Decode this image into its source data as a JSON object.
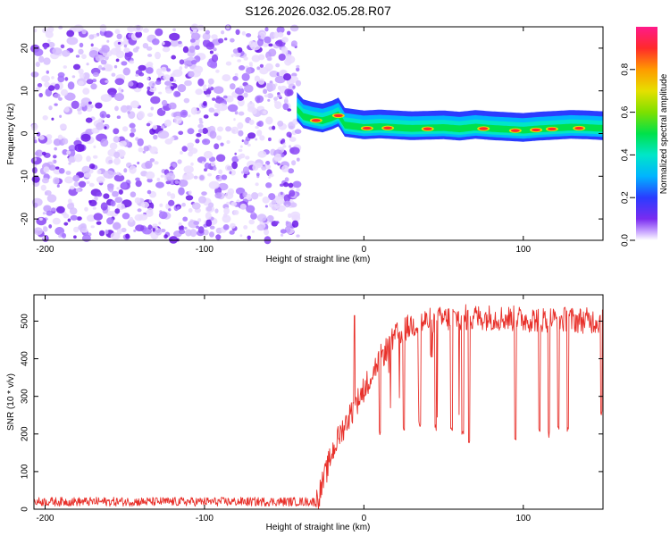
{
  "title": "S126.2026.032.05.28.R07",
  "colors": {
    "line": "#e8302a",
    "ridge_low": "#2a3cff",
    "scatter": "#7a2cf0"
  },
  "chart_data": [
    {
      "id": "spectrogram",
      "type": "heatmap",
      "xlabel": "Height of straight line (km)",
      "ylabel": "Frequency (Hz)",
      "xlim": [
        -207,
        150
      ],
      "ylim": [
        -25,
        25
      ],
      "xticks": [
        -200,
        -100,
        0,
        100
      ],
      "xtick_labels": [
        "-200",
        "-100",
        "0",
        "100"
      ],
      "yticks": [
        -20,
        -10,
        0,
        10,
        20
      ],
      "ytick_labels": [
        "-20",
        "-10",
        "0",
        "10",
        "20"
      ],
      "noise_region_x": [
        -207,
        -41
      ],
      "ridge_x": [
        -42,
        -38,
        -32,
        -26,
        -20,
        -16,
        -12,
        -6,
        0,
        10,
        30,
        50,
        60,
        70,
        80,
        90,
        100,
        110,
        120,
        130,
        140,
        150
      ],
      "ridge_freq": [
        5.5,
        3.8,
        3.2,
        2.8,
        3.5,
        4.2,
        1.8,
        1.5,
        1.2,
        1.4,
        1.0,
        1.2,
        0.9,
        1.3,
        1.0,
        0.8,
        0.6,
        0.9,
        1.1,
        1.3,
        1.2,
        1.0
      ],
      "ridge_peak_x": [
        -30,
        -16,
        2,
        15,
        40,
        75,
        95,
        108,
        118,
        135
      ],
      "colorbar": {
        "label": "Normalized spectral amplitude",
        "range": [
          0,
          1
        ],
        "ticks": [
          0.0,
          0.2,
          0.4,
          0.6,
          0.8
        ],
        "tick_labels": [
          "0.0",
          "0.2",
          "0.4",
          "0.6",
          "0.8"
        ]
      }
    },
    {
      "id": "snr",
      "type": "line",
      "xlabel": "Height of straight line (km)",
      "ylabel": "SNR (10 * v/v)",
      "xlim": [
        -207,
        150
      ],
      "ylim": [
        0,
        570
      ],
      "xticks": [
        -200,
        -100,
        0,
        100
      ],
      "xtick_labels": [
        "-200",
        "-100",
        "0",
        "100"
      ],
      "yticks": [
        0,
        100,
        200,
        300,
        400,
        500
      ],
      "ytick_labels": [
        "0",
        "100",
        "200",
        "300",
        "400",
        "500"
      ],
      "envelope_x": [
        -207,
        -30,
        -28,
        -25,
        -20,
        -15,
        -10,
        -5,
        0,
        5,
        10,
        15,
        20,
        25,
        30,
        40,
        50,
        60,
        80,
        100,
        120,
        150
      ],
      "envelope_y": [
        20,
        20,
        40,
        80,
        150,
        200,
        240,
        280,
        320,
        360,
        400,
        430,
        460,
        475,
        490,
        500,
        505,
        510,
        510,
        505,
        505,
        500
      ],
      "dips": [
        {
          "x": 10,
          "y": 190
        },
        {
          "x": 25,
          "y": 210
        },
        {
          "x": 35,
          "y": 215
        },
        {
          "x": 45,
          "y": 205
        },
        {
          "x": 55,
          "y": 200
        },
        {
          "x": 62,
          "y": 190
        },
        {
          "x": 66,
          "y": 175
        },
        {
          "x": 95,
          "y": 180
        },
        {
          "x": 110,
          "y": 195
        },
        {
          "x": 116,
          "y": 190
        },
        {
          "x": 122,
          "y": 200
        },
        {
          "x": 128,
          "y": 205
        },
        {
          "x": 149,
          "y": 250
        }
      ],
      "spike_x": -6,
      "spike_y": 515
    }
  ]
}
